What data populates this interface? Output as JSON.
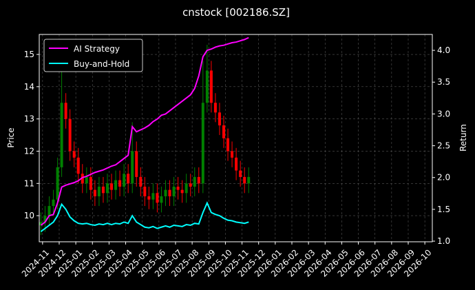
{
  "chart_data": {
    "type": "candlestick",
    "title": "cnstock [002186.SZ]",
    "ylabel": "Price",
    "y2label": "Return",
    "x": [
      -0.1,
      0.15,
      0.4,
      0.65,
      0.9,
      1.15,
      1.4,
      1.65,
      1.9,
      2.15,
      2.4,
      2.65,
      2.9,
      3.15,
      3.4,
      3.65,
      3.9,
      4.15,
      4.4,
      4.65,
      4.9,
      5.15,
      5.4,
      5.65,
      5.9,
      6.15,
      6.4,
      6.65,
      6.9,
      7.15,
      7.4,
      7.65,
      7.9,
      8.15,
      8.4,
      8.65,
      8.9,
      9.15,
      9.4,
      9.65,
      9.9,
      10.15,
      10.4,
      10.65,
      10.9,
      11.15,
      11.4,
      11.65,
      11.9,
      12.15,
      12.4
    ],
    "open": [
      9.7,
      9.8,
      10.0,
      10.3,
      10.5,
      11.5,
      13.5,
      13.0,
      12.0,
      11.8,
      11.3,
      11.0,
      11.2,
      10.8,
      10.6,
      10.9,
      10.7,
      11.0,
      10.8,
      11.1,
      10.9,
      11.3,
      11.0,
      12.0,
      11.2,
      10.9,
      10.6,
      10.5,
      10.7,
      10.4,
      10.6,
      10.8,
      10.6,
      10.9,
      10.8,
      10.7,
      11.0,
      10.9,
      11.2,
      11.0,
      13.5,
      14.5,
      13.5,
      13.2,
      12.8,
      12.4,
      12.0,
      11.8,
      11.4,
      11.2,
      11.0
    ],
    "high": [
      10.1,
      10.3,
      10.6,
      10.8,
      11.8,
      14.8,
      13.8,
      13.3,
      12.3,
      12.1,
      11.6,
      11.5,
      11.5,
      11.1,
      11.2,
      11.2,
      11.3,
      11.3,
      11.4,
      11.4,
      11.6,
      11.6,
      12.9,
      12.3,
      11.5,
      11.2,
      10.9,
      11.0,
      11.0,
      10.9,
      11.1,
      11.1,
      11.2,
      11.2,
      11.1,
      11.3,
      11.3,
      11.5,
      11.5,
      14.8,
      15.3,
      14.8,
      13.8,
      13.5,
      13.1,
      12.7,
      12.3,
      12.1,
      11.7,
      11.5,
      11.5
    ],
    "low": [
      9.4,
      9.5,
      9.7,
      10.0,
      10.2,
      11.2,
      12.7,
      11.7,
      11.5,
      11.0,
      10.7,
      10.7,
      10.5,
      10.3,
      10.3,
      10.4,
      10.4,
      10.5,
      10.5,
      10.6,
      10.6,
      10.7,
      10.7,
      10.9,
      10.6,
      10.3,
      10.2,
      10.2,
      10.1,
      10.1,
      10.3,
      10.3,
      10.3,
      10.5,
      10.4,
      10.4,
      10.6,
      10.6,
      10.7,
      10.7,
      13.2,
      13.2,
      12.9,
      12.5,
      12.1,
      11.7,
      11.5,
      11.1,
      10.9,
      10.7,
      10.7
    ],
    "close": [
      9.8,
      10.0,
      10.3,
      10.5,
      11.5,
      13.5,
      13.0,
      12.0,
      11.8,
      11.3,
      11.0,
      11.2,
      10.8,
      10.6,
      10.9,
      10.7,
      11.0,
      10.8,
      11.1,
      10.9,
      11.3,
      11.0,
      12.0,
      11.2,
      10.9,
      10.6,
      10.5,
      10.7,
      10.4,
      10.6,
      10.8,
      10.6,
      10.9,
      10.8,
      10.7,
      11.0,
      10.9,
      11.2,
      11.0,
      13.5,
      14.5,
      13.5,
      13.2,
      12.8,
      12.4,
      12.0,
      11.8,
      11.4,
      11.2,
      11.0,
      11.2
    ],
    "up_color": "#008000",
    "down_color": "#ff0000",
    "series": [
      {
        "name": "AI Strategy",
        "color": "#ff00ff",
        "axis": "y2",
        "values": [
          1.25,
          1.3,
          1.4,
          1.42,
          1.6,
          1.85,
          1.88,
          1.9,
          1.92,
          1.95,
          2.0,
          2.02,
          2.05,
          2.08,
          2.1,
          2.12,
          2.15,
          2.18,
          2.2,
          2.25,
          2.3,
          2.35,
          2.8,
          2.72,
          2.75,
          2.78,
          2.82,
          2.88,
          2.92,
          2.98,
          3.0,
          3.05,
          3.1,
          3.15,
          3.2,
          3.25,
          3.3,
          3.4,
          3.6,
          3.9,
          4.0,
          4.02,
          4.05,
          4.07,
          4.08,
          4.1,
          4.12,
          4.13,
          4.15,
          4.17,
          4.2
        ]
      },
      {
        "name": "Buy-and-Hold",
        "color": "#00ffff",
        "axis": "y2",
        "values": [
          1.15,
          1.2,
          1.25,
          1.3,
          1.4,
          1.58,
          1.5,
          1.38,
          1.32,
          1.28,
          1.27,
          1.28,
          1.26,
          1.25,
          1.27,
          1.26,
          1.28,
          1.26,
          1.28,
          1.27,
          1.3,
          1.28,
          1.4,
          1.3,
          1.26,
          1.22,
          1.21,
          1.23,
          1.2,
          1.22,
          1.24,
          1.22,
          1.25,
          1.24,
          1.23,
          1.26,
          1.25,
          1.28,
          1.27,
          1.45,
          1.6,
          1.45,
          1.42,
          1.4,
          1.36,
          1.33,
          1.32,
          1.3,
          1.29,
          1.28,
          1.3
        ]
      }
    ],
    "xlim": [
      -0.2,
      23.45
    ],
    "xticks": [
      {
        "value": 0,
        "label": "2024-11"
      },
      {
        "value": 1,
        "label": "2024-12"
      },
      {
        "value": 2,
        "label": "2025-01"
      },
      {
        "value": 3,
        "label": "2025-02"
      },
      {
        "value": 4,
        "label": "2025-03"
      },
      {
        "value": 5,
        "label": "2025-04"
      },
      {
        "value": 6,
        "label": "2025-05"
      },
      {
        "value": 7,
        "label": "2025-06"
      },
      {
        "value": 8,
        "label": "2025-07"
      },
      {
        "value": 9,
        "label": "2025-08"
      },
      {
        "value": 10,
        "label": "2025-09"
      },
      {
        "value": 11,
        "label": "2025-10"
      },
      {
        "value": 12,
        "label": "2025-11"
      },
      {
        "value": 13,
        "label": "2025-12"
      },
      {
        "value": 14,
        "label": "2026-01"
      },
      {
        "value": 15,
        "label": "2026-02"
      },
      {
        "value": 16,
        "label": "2026-03"
      },
      {
        "value": 17,
        "label": "2026-04"
      },
      {
        "value": 18,
        "label": "2026-05"
      },
      {
        "value": 19,
        "label": "2026-06"
      },
      {
        "value": 20,
        "label": "2026-07"
      },
      {
        "value": 21,
        "label": "2026-08"
      },
      {
        "value": 22,
        "label": "2026-09"
      },
      {
        "value": 23,
        "label": "2026-10"
      }
    ],
    "ylim": [
      9.19,
      15.62
    ],
    "yticks": [
      10,
      11,
      12,
      13,
      14,
      15
    ],
    "y2lim": [
      0.99,
      4.25
    ],
    "y2ticks": [
      {
        "value": 1,
        "label": "1.0"
      },
      1.5,
      {
        "value": 2,
        "label": "2.0"
      },
      2.5,
      {
        "value": 3,
        "label": "3.0"
      },
      3.5,
      {
        "value": 4,
        "label": "4.0"
      }
    ],
    "grid": true,
    "legend": "upper left"
  }
}
